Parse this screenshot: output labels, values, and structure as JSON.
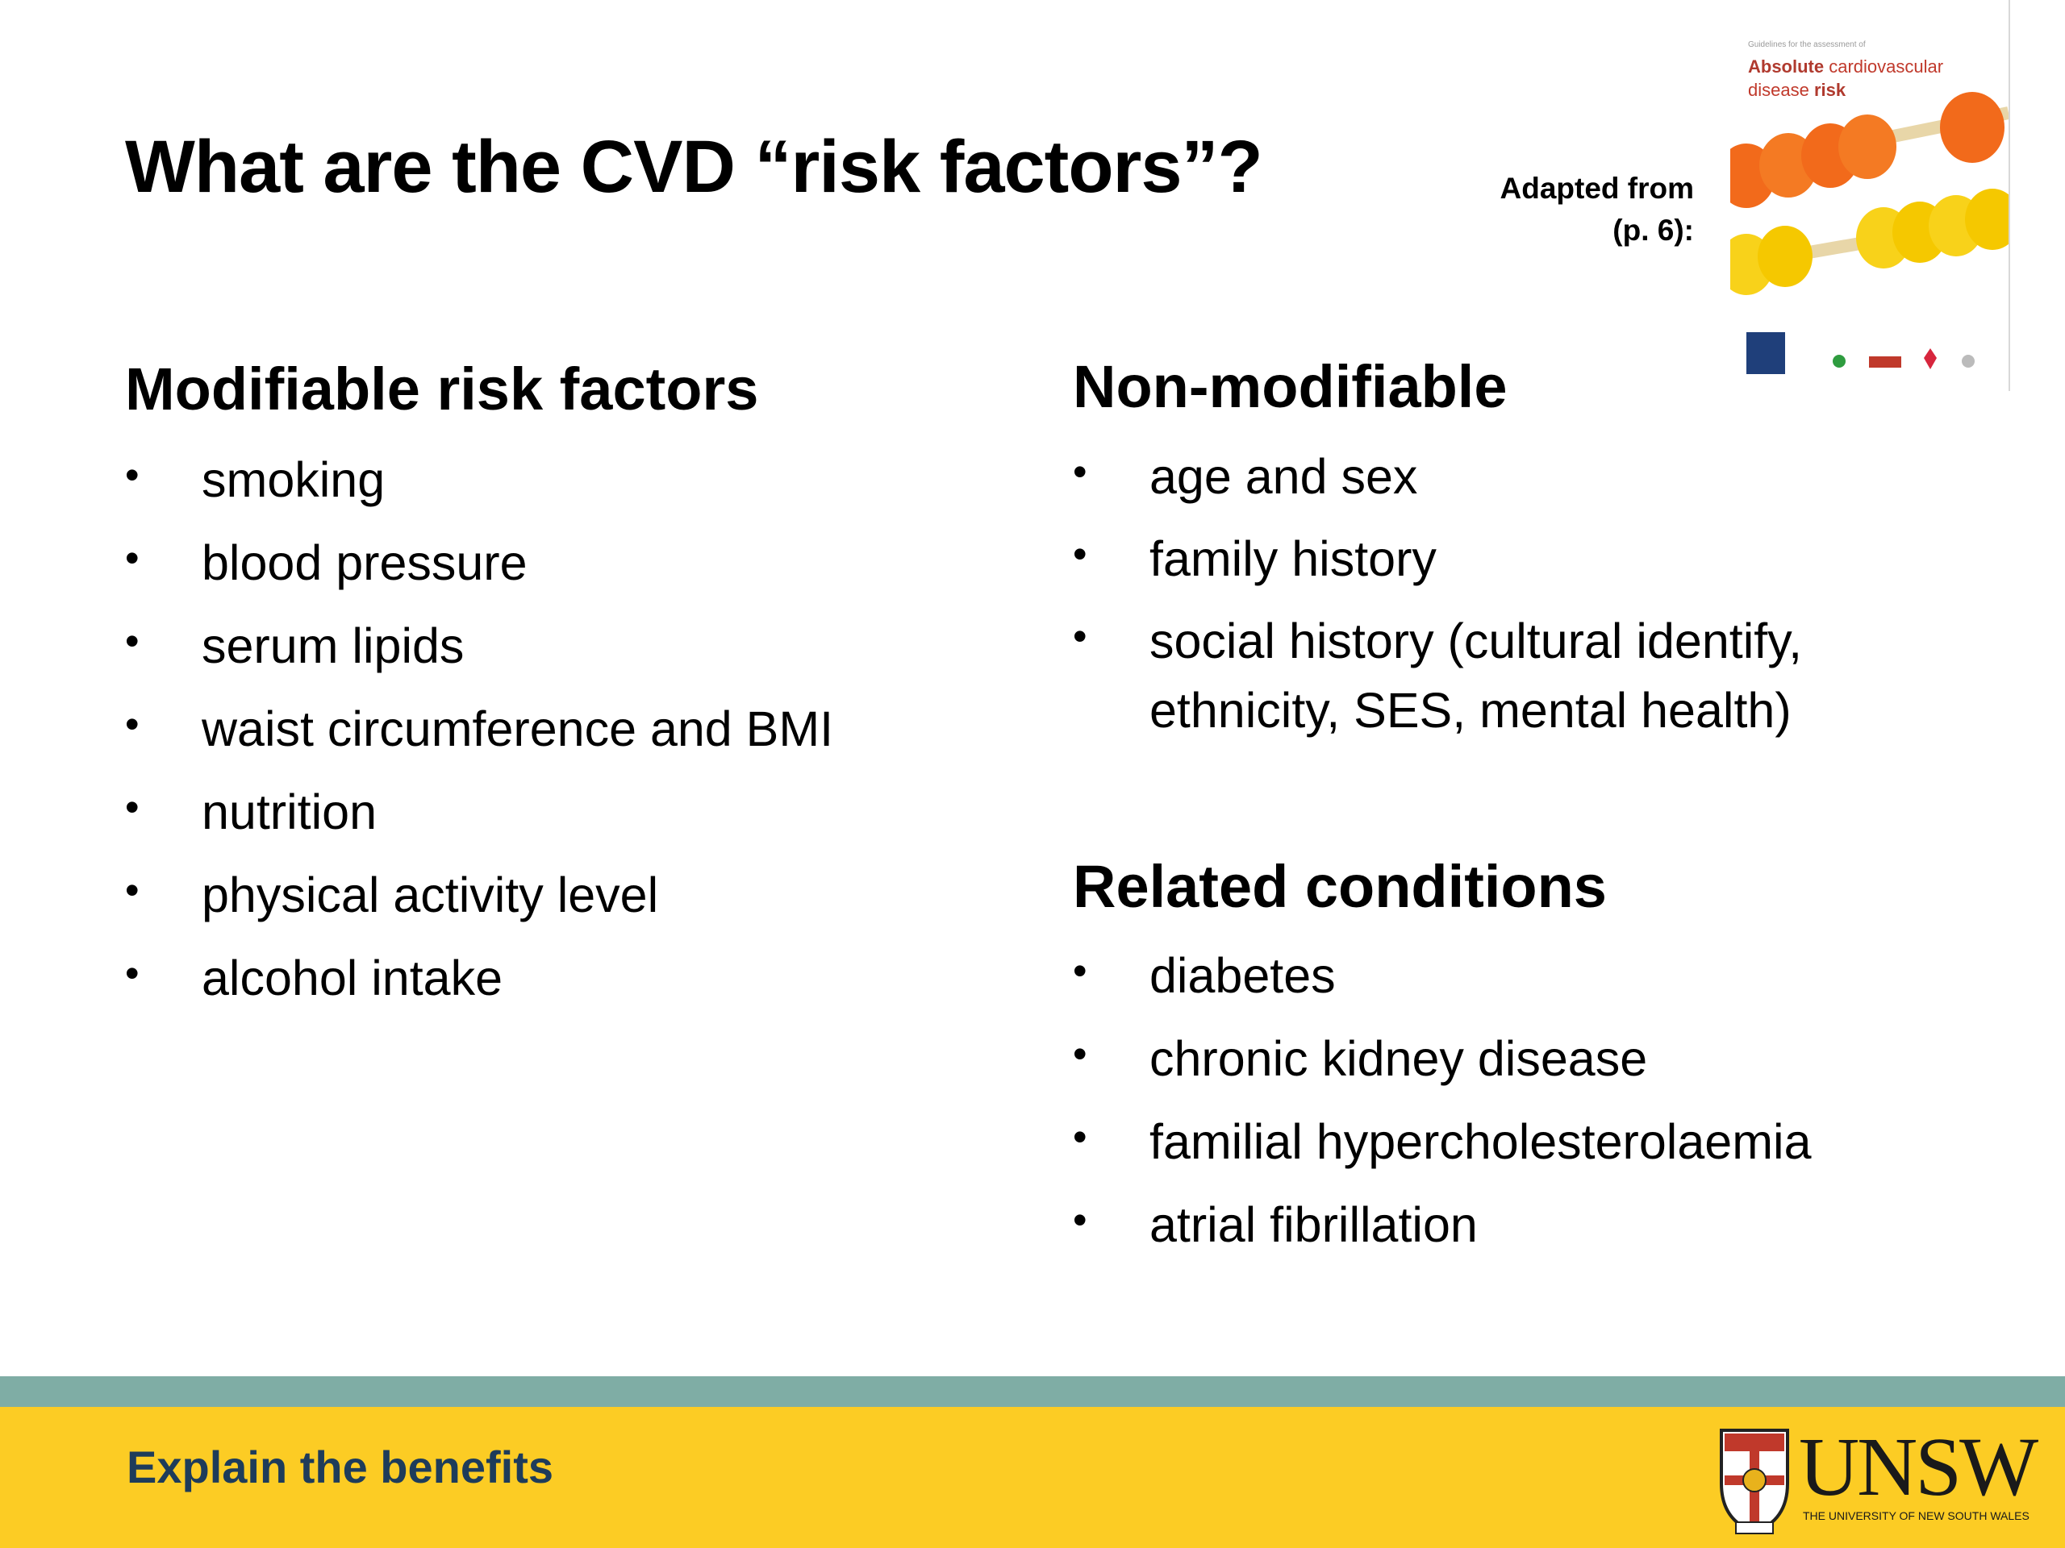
{
  "title": "What are the CVD “risk factors”?",
  "adapted": {
    "line1": "Adapted from",
    "line2": "(p. 6):"
  },
  "cover": {
    "small_text": "Guidelines for the assessment of",
    "title_bold1": "Absolute",
    "title_rest1": " cardiovascular",
    "title_rest2": "disease ",
    "title_bold2": "risk"
  },
  "modifiable": {
    "heading": "Modifiable risk factors",
    "items": [
      "smoking",
      "blood pressure",
      "serum lipids",
      "waist circumference and BMI",
      "nutrition",
      "physical activity level",
      "alcohol intake"
    ]
  },
  "non_modifiable": {
    "heading": "Non-modifiable",
    "items": [
      "age and sex",
      "family history",
      "social history (cultural identify,",
      "ethnicity, SES, mental health)"
    ]
  },
  "related": {
    "heading": "Related conditions",
    "items": [
      "diabetes",
      "chronic kidney disease",
      "familial hypercholesterolaemia",
      "atrial fibrillation"
    ]
  },
  "bullet_char": "•",
  "footer": {
    "text": "Explain the benefits"
  },
  "logo": {
    "word": "UNSW",
    "sub": "THE UNIVERSITY OF NEW SOUTH WALES"
  },
  "colors": {
    "teal_bar": "#7fada5",
    "yellow_bar": "#fccc24",
    "footer_text": "#1e3c5a"
  }
}
